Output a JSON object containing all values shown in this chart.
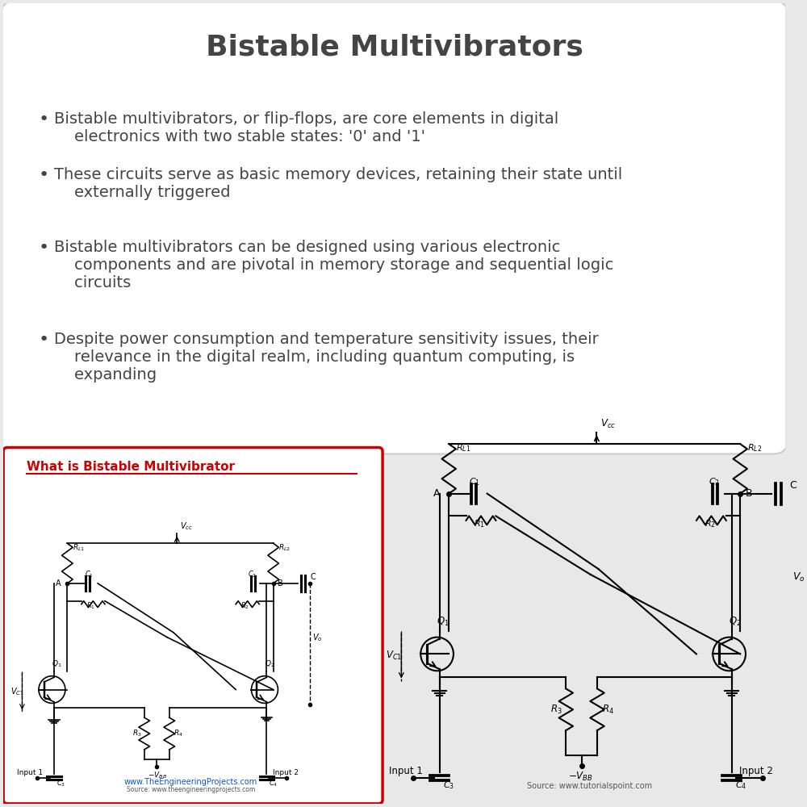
{
  "title": "Bistable Multivibrators",
  "title_fontsize": 26,
  "title_color": "#444444",
  "background_color": "#e8e8e8",
  "bullet_points": [
    "Bistable multivibrators, or flip-flops, are core elements in digital\n    electronics with two stable states: '0' and '1'",
    "These circuits serve as basic memory devices, retaining their state until\n    externally triggered",
    "Bistable multivibrators can be designed using various electronic\n    components and are pivotal in memory storage and sequential logic\n    circuits",
    "Despite power consumption and temperature sensitivity issues, their\n    relevance in the digital realm, including quantum computing, is\n    expanding"
  ],
  "bullet_fontsize": 14,
  "bullet_color": "#444444",
  "box_bg": "#ffffff",
  "box_border_color": "#cccccc",
  "left_title": "What is Bistable Multivibrator",
  "left_title_color": "#cc0000",
  "left_box_border": "#cc0000",
  "source_left": "www.TheEngineeringProjects.com",
  "source_left2": "Source: www.theengineeringprojects.com",
  "source_right": "Source: www.tutorialspoint.com"
}
